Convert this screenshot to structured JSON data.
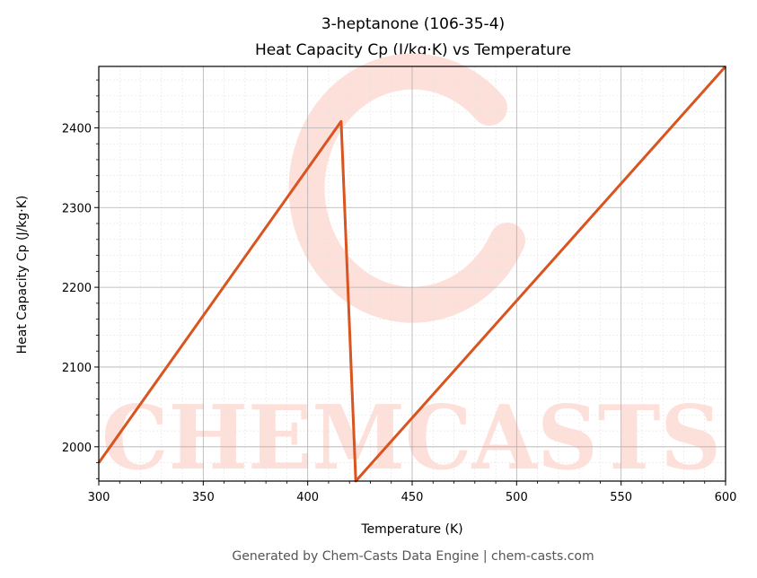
{
  "chart_data": {
    "type": "line",
    "title_line1": "3-heptanone (106-35-4)",
    "title_line2": "Heat Capacity Cp (J/kg·K) vs Temperature",
    "xlabel": "Temperature (K)",
    "ylabel": "Heat Capacity Cp (J/kg·K)",
    "xlim": [
      300,
      600
    ],
    "ylim": [
      1957,
      2477
    ],
    "x_ticks": [
      300,
      350,
      400,
      450,
      500,
      550,
      600
    ],
    "y_ticks": [
      2000,
      2100,
      2200,
      2300,
      2400
    ],
    "grid": true,
    "series": [
      {
        "color": "#d9541e",
        "x": [
          300,
          416,
          423,
          600
        ],
        "y": [
          1980,
          2408,
          1957,
          2477
        ]
      }
    ]
  },
  "footer": "Generated by Chem-Casts Data Engine | chem-casts.com",
  "watermark": {
    "text": "CHEMCASTS",
    "color": "#fde0da"
  }
}
